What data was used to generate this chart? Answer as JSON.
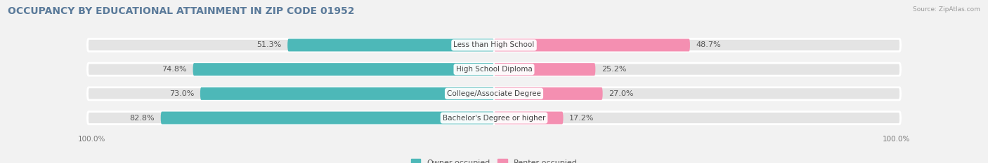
{
  "title": "OCCUPANCY BY EDUCATIONAL ATTAINMENT IN ZIP CODE 01952",
  "source": "Source: ZipAtlas.com",
  "categories": [
    "Less than High School",
    "High School Diploma",
    "College/Associate Degree",
    "Bachelor's Degree or higher"
  ],
  "owner_values": [
    51.3,
    74.8,
    73.0,
    82.8
  ],
  "renter_values": [
    48.7,
    25.2,
    27.0,
    17.2
  ],
  "owner_color": "#4DB8B8",
  "renter_color": "#F48FB1",
  "bg_color": "#f2f2f2",
  "bar_bg_color": "#e4e4e4",
  "title_color": "#5a7a9a",
  "title_fontsize": 10,
  "label_fontsize": 8,
  "axis_label_fontsize": 7.5
}
